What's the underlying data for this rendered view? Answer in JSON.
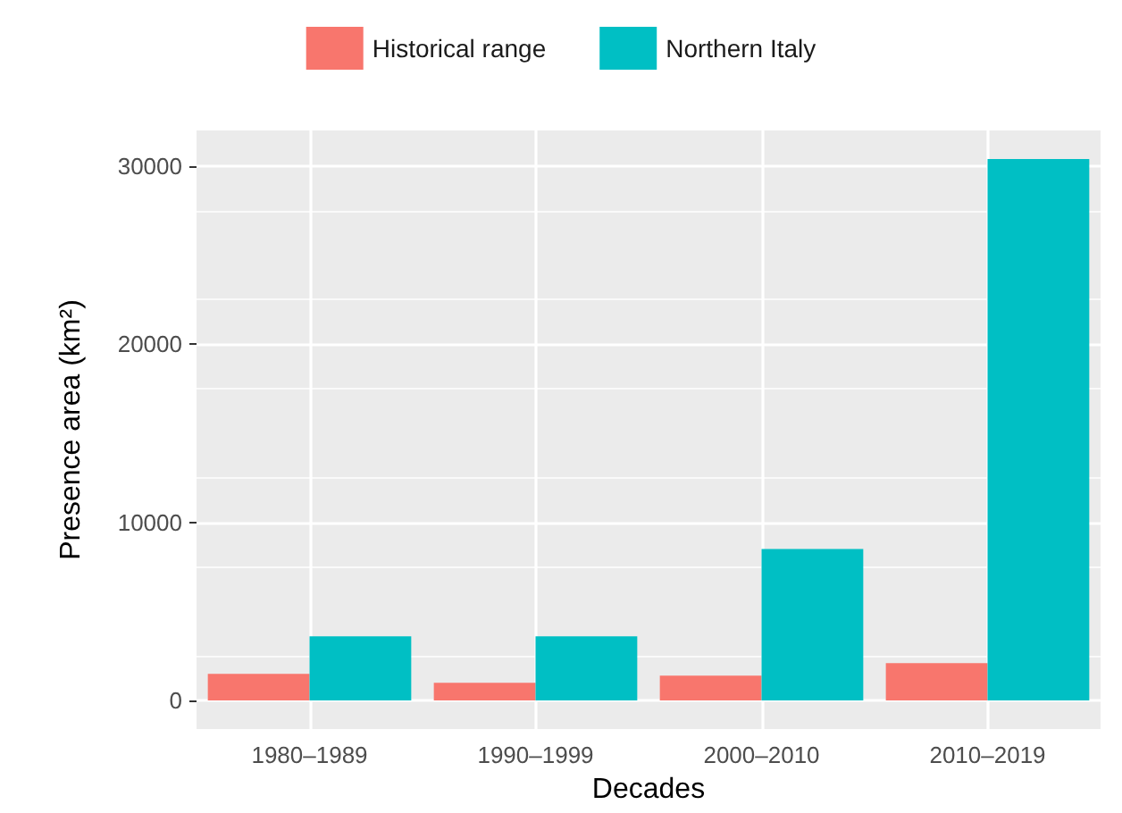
{
  "chart_data": {
    "type": "bar",
    "xlabel": "Decades",
    "ylabel": "Presence area (km²)",
    "categories": [
      "1980–1989",
      "1990–1999",
      "2000–2010",
      "2010–2019"
    ],
    "series": [
      {
        "name": "Historical range",
        "color": "#f8766d",
        "values": [
          1500,
          1000,
          1400,
          2100
        ]
      },
      {
        "name": "Northern Italy",
        "color": "#00bfc4",
        "values": [
          3600,
          3600,
          8500,
          30400
        ]
      }
    ],
    "ylim": [
      -1600,
      32000
    ],
    "yticks": [
      0,
      10000,
      20000,
      30000
    ],
    "grid": true,
    "legend": "top"
  }
}
